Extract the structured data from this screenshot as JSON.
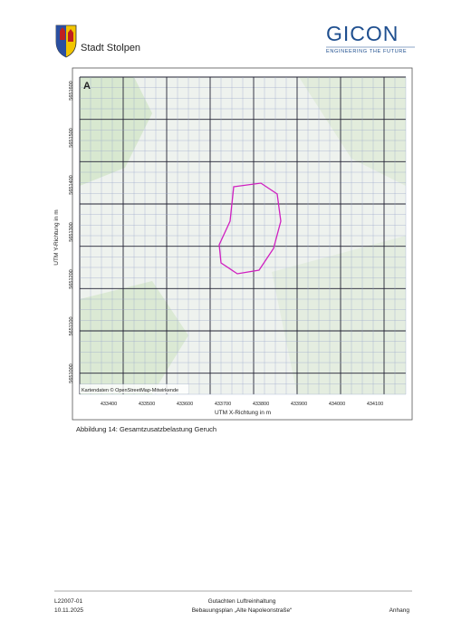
{
  "header": {
    "municipality": "Stadt Stolpen",
    "company": "GICON",
    "tagline": "ENGINEERING THE FUTURE"
  },
  "figure": {
    "caption": "Abbildung 14: Gesamtzusatzbelastung Geruch",
    "attribution": "Kartendaten © OpenStreetMap-Mitwirkende",
    "x_axis_label": "UTM X-Richtung in m",
    "y_axis_label": "UTM Y-Richtung in m",
    "x_ticks": [
      "433400",
      "433500",
      "433600",
      "433700",
      "433800",
      "433900",
      "434000",
      "434100"
    ],
    "y_ticks": [
      "5651600",
      "5651500",
      "5651400",
      "5651300",
      "5651200",
      "5651100",
      "5651000"
    ]
  },
  "footer": {
    "project_number": "L22007-01",
    "date": "10.11.2025",
    "report_title": "Gutachten Luftreinhaltung",
    "report_subtitle": "Bebauungsplan „Alte Napoleonstraße“",
    "section": "Anhang"
  }
}
